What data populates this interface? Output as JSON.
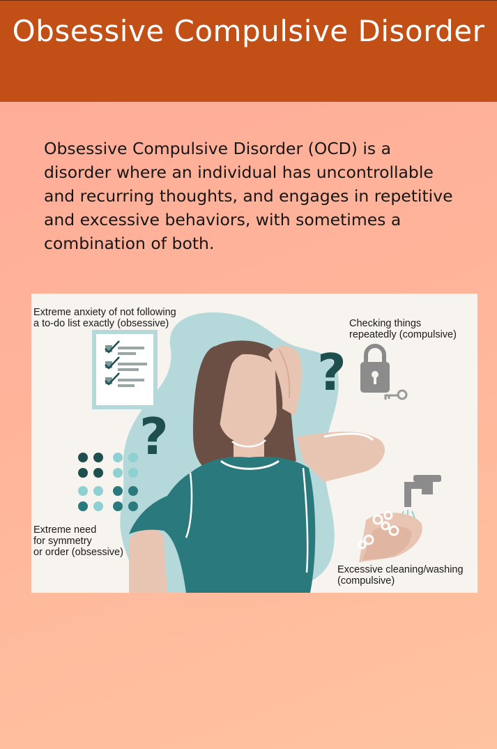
{
  "header": {
    "title": "Obsessive Compulsive Disorder"
  },
  "intro": {
    "text": "Obsessive Compulsive Disorder (OCD) is a disorder where an individual has uncontrollable and recurring thoughts, and engages in repetitive and excessive behaviors, with sometimes a combination of both."
  },
  "illustration": {
    "captions": {
      "todo_list": "Extreme anxiety of not following\na to-do list exactly (obsessive)",
      "checking": "Checking things\nrepeatedly (compulsive)",
      "symmetry": "Extreme need\nfor symmetry\nor order (obsessive)",
      "washing": "Excessive cleaning/washing\n(compulsive)"
    },
    "icons": [
      "checklist-icon",
      "question-mark-icon",
      "padlock-icon",
      "key-icon",
      "dot-grid-icon",
      "faucet-icon",
      "soap-bubbles-icon"
    ]
  },
  "colors": {
    "header_bg": "#c24f16",
    "header_text": "#ffffff",
    "page_bg": "#ffb49a",
    "teal_shirt": "#2a7a7d",
    "hair": "#6b4f45",
    "skin": "#e8c5b2",
    "blob": "#b5d9db"
  }
}
